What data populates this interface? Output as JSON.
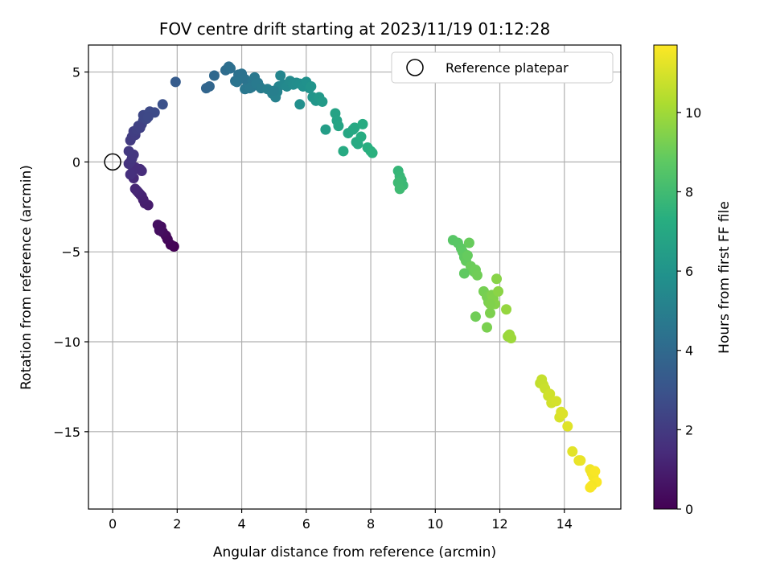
{
  "chart_data": {
    "type": "scatter",
    "title": "FOV centre drift starting at 2023/11/19 01:12:28",
    "xlabel": "Angular distance from reference (arcmin)",
    "ylabel": "Rotation from reference (arcmin)",
    "xlim": [
      -0.75,
      15.75
    ],
    "ylim": [
      -19.3,
      6.5
    ],
    "xticks": [
      0,
      2,
      4,
      6,
      8,
      10,
      12,
      14
    ],
    "yticks": [
      5,
      0,
      -5,
      -10,
      -15
    ],
    "xtick_labels": [
      "0",
      "2",
      "4",
      "6",
      "8",
      "10",
      "12",
      "14"
    ],
    "ytick_labels": [
      "5",
      "0",
      "−5",
      "−10",
      "−15"
    ],
    "grid": true,
    "legend": {
      "label": "Reference platepar",
      "placement": "top-right"
    },
    "reference_point": {
      "x": 0,
      "y": 0
    },
    "colorbar": {
      "label": "Hours from first FF file",
      "colormap": "viridis",
      "range": [
        0,
        11.7
      ],
      "ticks": [
        0,
        2,
        4,
        6,
        8,
        10
      ],
      "tick_labels": [
        "0",
        "2",
        "4",
        "6",
        "8",
        "10"
      ]
    },
    "series": [
      {
        "x": [
          1.9,
          1.8,
          1.7,
          1.65,
          1.55,
          1.5,
          1.4,
          1.45,
          1.1,
          1.0,
          0.95,
          0.9,
          0.85,
          0.8,
          0.75,
          0.7,
          0.65,
          0.85,
          0.9,
          0.7,
          0.6,
          0.55,
          0.5,
          0.55,
          0.6,
          0.65,
          0.5,
          0.55,
          0.6,
          0.7,
          0.65,
          0.75,
          0.8,
          0.9,
          0.95,
          1.05,
          0.85,
          0.95,
          1.15,
          1.3,
          1.1,
          1.55,
          1.95,
          2.9,
          3.0,
          3.15,
          3.5,
          3.6,
          3.65,
          3.8,
          3.9,
          4.0,
          4.1,
          4.2,
          4.3,
          4.35,
          4.4,
          4.5,
          4.55,
          3.85,
          4.1,
          4.25,
          4.45,
          4.6,
          4.8,
          4.95,
          5.05,
          5.1,
          5.15,
          5.2,
          5.3,
          5.4,
          5.5,
          5.6,
          5.7,
          5.8,
          5.9,
          6.0,
          6.1,
          6.15,
          5.8,
          5.0,
          6.2,
          6.3,
          6.4,
          6.5,
          6.6,
          6.9,
          6.95,
          7.0,
          7.3,
          7.45,
          7.5,
          7.55,
          7.6,
          7.75,
          7.7,
          7.15,
          7.9,
          8.0,
          8.05,
          8.85,
          8.9,
          8.95,
          9.0,
          8.85,
          8.9,
          10.55,
          10.7,
          10.8,
          10.85,
          10.9,
          10.95,
          11.0,
          11.05,
          11.1,
          10.9,
          11.2,
          11.25,
          11.3,
          11.5,
          11.6,
          11.65,
          11.7,
          11.75,
          11.8,
          11.85,
          11.9,
          11.95,
          11.6,
          11.7,
          11.25,
          12.2,
          12.25,
          12.3,
          12.35,
          13.25,
          13.3,
          13.35,
          13.4,
          13.5,
          13.55,
          13.6,
          13.75,
          13.85,
          13.9,
          13.95,
          14.1,
          14.25,
          14.45,
          14.5,
          14.8,
          14.85,
          14.9,
          14.95,
          15.0,
          14.85,
          14.8
        ],
        "y": [
          -4.7,
          -4.6,
          -4.3,
          -4.1,
          -3.9,
          -3.6,
          -3.5,
          -3.8,
          -2.4,
          -2.3,
          -2.1,
          -1.9,
          -1.8,
          -1.7,
          -1.6,
          -1.5,
          -0.9,
          -0.4,
          -0.5,
          -0.3,
          -0.6,
          -0.7,
          -0.1,
          0.0,
          0.2,
          0.4,
          0.6,
          1.2,
          1.4,
          1.5,
          1.7,
          1.8,
          2.0,
          2.1,
          2.3,
          2.4,
          1.9,
          2.6,
          2.8,
          2.75,
          2.5,
          3.2,
          4.45,
          4.1,
          4.2,
          4.8,
          5.1,
          5.3,
          5.2,
          4.5,
          4.85,
          4.9,
          4.6,
          4.3,
          4.15,
          4.5,
          4.7,
          4.4,
          4.2,
          4.45,
          4.05,
          4.1,
          4.35,
          4.1,
          4.05,
          3.8,
          3.6,
          3.9,
          4.2,
          4.8,
          4.3,
          4.2,
          4.5,
          4.3,
          4.4,
          4.35,
          4.2,
          4.45,
          4.1,
          4.2,
          3.2,
          3.95,
          3.6,
          3.4,
          3.6,
          3.35,
          1.8,
          2.7,
          2.3,
          2.0,
          1.6,
          1.8,
          1.9,
          1.1,
          1.0,
          2.1,
          1.4,
          0.6,
          0.8,
          0.6,
          0.5,
          -0.5,
          -0.8,
          -1.0,
          -1.3,
          -1.15,
          -1.5,
          -4.35,
          -4.5,
          -4.8,
          -5.0,
          -5.3,
          -5.5,
          -5.2,
          -4.5,
          -5.8,
          -6.2,
          -6.1,
          -6.0,
          -6.3,
          -7.2,
          -7.5,
          -7.8,
          -8.4,
          -7.4,
          -7.6,
          -7.9,
          -6.5,
          -7.2,
          -9.2,
          -7.9,
          -8.6,
          -8.2,
          -9.7,
          -9.6,
          -9.8,
          -12.3,
          -12.1,
          -12.4,
          -12.6,
          -13.0,
          -12.9,
          -13.4,
          -13.3,
          -14.2,
          -13.9,
          -14.0,
          -14.7,
          -16.1,
          -16.6,
          -16.6,
          -17.1,
          -17.3,
          -17.5,
          -17.2,
          -17.8,
          -18.0,
          -18.1
        ],
        "t": [
          0.0,
          0.1,
          0.2,
          0.25,
          0.35,
          0.4,
          0.5,
          0.45,
          0.9,
          0.95,
          1.0,
          1.05,
          1.1,
          1.15,
          1.2,
          1.25,
          1.35,
          1.4,
          1.45,
          1.5,
          1.55,
          1.6,
          1.7,
          1.75,
          1.8,
          1.85,
          1.9,
          2.0,
          2.05,
          2.1,
          2.15,
          2.2,
          2.3,
          2.35,
          2.4,
          2.45,
          2.25,
          2.5,
          2.6,
          2.65,
          2.55,
          2.9,
          3.4,
          3.8,
          3.85,
          3.95,
          4.1,
          4.2,
          4.25,
          4.3,
          4.35,
          4.4,
          4.45,
          4.5,
          4.55,
          4.6,
          4.65,
          4.7,
          4.75,
          4.5,
          4.6,
          4.65,
          4.75,
          4.8,
          5.0,
          5.05,
          5.1,
          5.15,
          5.25,
          5.3,
          5.4,
          5.45,
          5.5,
          5.6,
          5.65,
          5.7,
          5.8,
          5.85,
          5.9,
          6.0,
          5.75,
          5.0,
          6.05,
          6.1,
          6.2,
          6.3,
          6.45,
          6.7,
          6.75,
          6.8,
          6.9,
          6.95,
          7.0,
          7.05,
          7.1,
          7.15,
          7.2,
          7.1,
          7.3,
          7.35,
          7.4,
          7.7,
          7.75,
          7.8,
          7.85,
          7.9,
          7.95,
          8.6,
          8.65,
          8.7,
          8.75,
          8.8,
          8.85,
          8.9,
          8.95,
          9.0,
          8.8,
          9.0,
          9.05,
          9.1,
          9.2,
          9.25,
          9.3,
          9.35,
          9.4,
          9.45,
          9.5,
          9.55,
          9.6,
          9.3,
          9.4,
          9.1,
          9.8,
          9.85,
          9.9,
          9.95,
          10.6,
          10.65,
          10.7,
          10.75,
          10.8,
          10.85,
          10.9,
          10.95,
          11.0,
          11.05,
          11.1,
          11.15,
          11.2,
          11.3,
          11.35,
          11.45,
          11.5,
          11.55,
          11.6,
          11.65,
          11.55,
          11.6
        ]
      }
    ]
  }
}
